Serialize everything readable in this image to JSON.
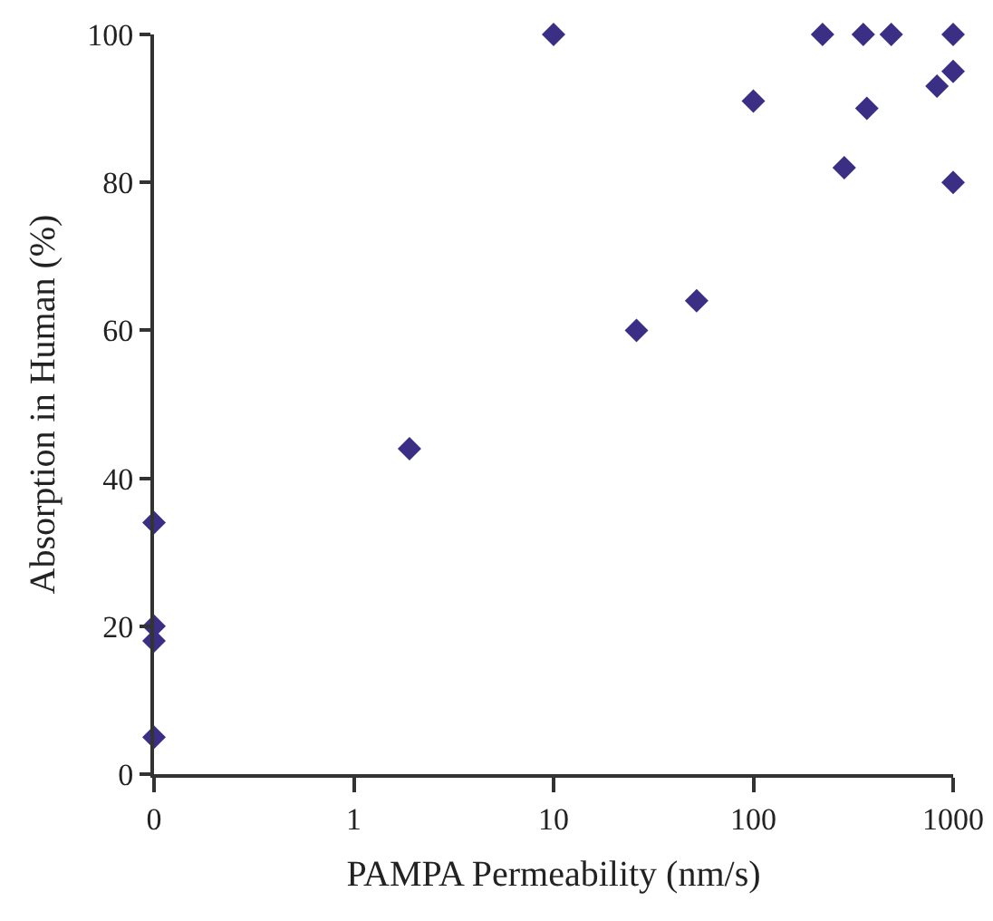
{
  "chart_data": {
    "type": "scatter",
    "xlabel": "PAMPA Permeability (nm/s)",
    "ylabel": "Absorption in Human (%)",
    "log": "x",
    "grid": false,
    "marker": "diamond",
    "xlim": [
      0.1,
      1000
    ],
    "xticks": [
      {
        "value": 0.1,
        "label": "0"
      },
      1,
      10,
      100,
      1000
    ],
    "ylim": [
      0,
      100
    ],
    "yticks": [
      0,
      20,
      40,
      60,
      80,
      100
    ],
    "series": [
      {
        "color": "#3b2f85",
        "x": [
          0.1,
          0.1,
          0.1,
          0.1,
          1.9,
          10,
          26,
          52,
          100,
          222,
          285,
          355,
          370,
          490,
          830,
          1000,
          1000,
          1000
        ],
        "values": [
          34,
          20,
          18,
          5,
          44,
          100,
          60,
          64,
          91,
          100,
          82,
          100,
          90,
          100,
          93,
          100,
          95,
          80
        ]
      }
    ]
  }
}
